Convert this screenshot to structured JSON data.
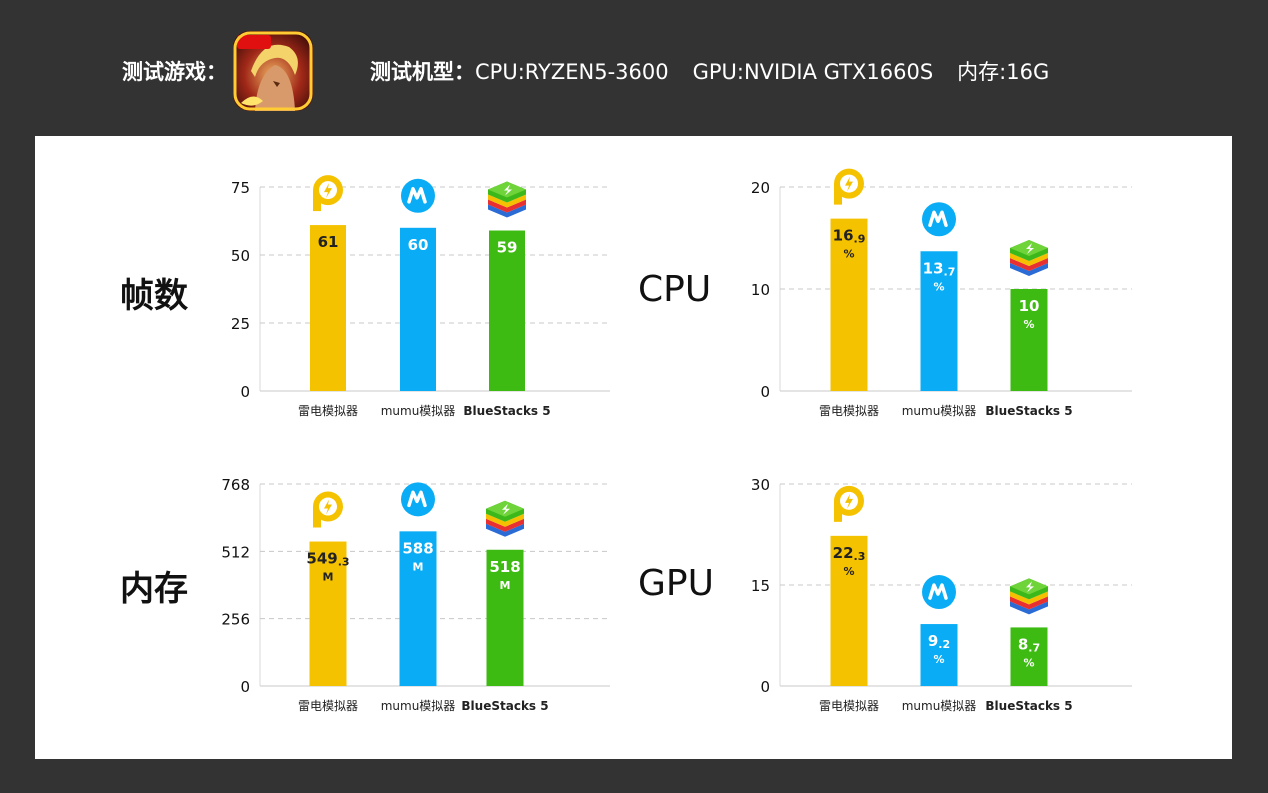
{
  "header": {
    "game_label": "测试游戏：",
    "spec_prefix": "测试机型：",
    "cpu": "CPU:RYZEN5-3600",
    "gpu": "GPU:NVIDIA GTX1660S",
    "memory": "内存:16G"
  },
  "colors": {
    "ldplayer": "#F5C200",
    "mumu": "#0AADF5",
    "bluestacks": "#3DBB12"
  },
  "chart_data": [
    {
      "id": "fps",
      "type": "bar",
      "title": "帧数",
      "categories": [
        "雷电模拟器",
        "mumu模拟器",
        "BlueStacks 5"
      ],
      "values": [
        61,
        60,
        59
      ],
      "value_labels": [
        {
          "main": "61",
          "sub": ""
        },
        {
          "main": "60",
          "sub": ""
        },
        {
          "main": "59",
          "sub": ""
        }
      ],
      "unit_label": "",
      "ylim": [
        0,
        75
      ],
      "ticks": [
        0,
        25,
        50,
        75
      ],
      "grid": true
    },
    {
      "id": "cpu",
      "type": "bar",
      "title": "CPU",
      "categories": [
        "雷电模拟器",
        "mumu模拟器",
        "BlueStacks 5"
      ],
      "values": [
        16.9,
        13.7,
        10
      ],
      "value_labels": [
        {
          "main": "16",
          "sub": ".9"
        },
        {
          "main": "13",
          "sub": ".7"
        },
        {
          "main": "10",
          "sub": ""
        }
      ],
      "unit_label": "%",
      "ylim": [
        0,
        20
      ],
      "ticks": [
        0,
        10,
        20
      ],
      "grid": true
    },
    {
      "id": "memory",
      "type": "bar",
      "title": "内存",
      "categories": [
        "雷电模拟器",
        "mumu模拟器",
        "BlueStacks 5"
      ],
      "values": [
        549.3,
        588,
        518
      ],
      "value_labels": [
        {
          "main": "549",
          "sub": ".3"
        },
        {
          "main": "588",
          "sub": ""
        },
        {
          "main": "518",
          "sub": ""
        }
      ],
      "unit_label": "M",
      "ylim": [
        0,
        768
      ],
      "ticks": [
        0,
        256,
        512,
        768
      ],
      "grid": true
    },
    {
      "id": "gpu",
      "type": "bar",
      "title": "GPU",
      "categories": [
        "雷电模拟器",
        "mumu模拟器",
        "BlueStacks 5"
      ],
      "values": [
        22.3,
        9.2,
        8.7
      ],
      "value_labels": [
        {
          "main": "22",
          "sub": ".3"
        },
        {
          "main": "9",
          "sub": ".2"
        },
        {
          "main": "8",
          "sub": ".7"
        }
      ],
      "unit_label": "%",
      "ylim": [
        0,
        30
      ],
      "ticks": [
        0,
        15,
        30
      ],
      "grid": true
    }
  ]
}
